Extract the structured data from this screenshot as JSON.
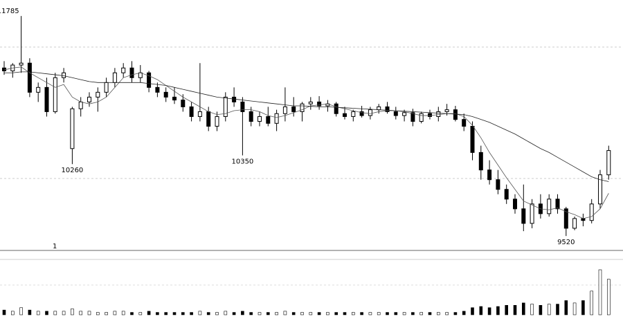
{
  "chart_data": {
    "type": "candlestick",
    "ohlc": [
      [
        11250,
        11320,
        11180,
        11220
      ],
      [
        11220,
        11300,
        11150,
        11280
      ],
      [
        11280,
        11785,
        11200,
        11300
      ],
      [
        11300,
        11350,
        10950,
        11000
      ],
      [
        11000,
        11100,
        10900,
        11050
      ],
      [
        11050,
        11150,
        10750,
        10800
      ],
      [
        10800,
        11200,
        10780,
        11150
      ],
      [
        11150,
        11250,
        11100,
        11200
      ],
      [
        10420,
        10850,
        10260,
        10830
      ],
      [
        10830,
        10950,
        10750,
        10900
      ],
      [
        10900,
        11000,
        10850,
        10950
      ],
      [
        10950,
        11050,
        10800,
        11000
      ],
      [
        11000,
        11150,
        10950,
        11100
      ],
      [
        11100,
        11250,
        11050,
        11200
      ],
      [
        11200,
        11300,
        11150,
        11250
      ],
      [
        11250,
        11320,
        11100,
        11150
      ],
      [
        11150,
        11280,
        11100,
        11200
      ],
      [
        11200,
        11220,
        11000,
        11050
      ],
      [
        11050,
        11100,
        10950,
        11000
      ],
      [
        11000,
        11050,
        10900,
        10950
      ],
      [
        10950,
        11050,
        10880,
        10920
      ],
      [
        10920,
        10980,
        10800,
        10850
      ],
      [
        10850,
        10900,
        10700,
        10750
      ],
      [
        10750,
        11300,
        10700,
        10800
      ],
      [
        10800,
        10850,
        10600,
        10650
      ],
      [
        10650,
        10800,
        10600,
        10750
      ],
      [
        10750,
        11000,
        10700,
        10950
      ],
      [
        10950,
        11050,
        10850,
        10900
      ],
      [
        10900,
        10950,
        10350,
        10800
      ],
      [
        10800,
        10850,
        10650,
        10700
      ],
      [
        10700,
        10800,
        10650,
        10750
      ],
      [
        10750,
        10850,
        10650,
        10680
      ],
      [
        10680,
        10820,
        10600,
        10780
      ],
      [
        10780,
        11050,
        10700,
        10850
      ],
      [
        10850,
        10950,
        10750,
        10800
      ],
      [
        10800,
        10900,
        10700,
        10880
      ],
      [
        10880,
        10950,
        10820,
        10900
      ],
      [
        10900,
        10960,
        10820,
        10860
      ],
      [
        10860,
        10920,
        10800,
        10880
      ],
      [
        10880,
        10900,
        10750,
        10780
      ],
      [
        10780,
        10850,
        10720,
        10750
      ],
      [
        10750,
        10820,
        10700,
        10800
      ],
      [
        10800,
        10860,
        10740,
        10760
      ],
      [
        10760,
        10850,
        10720,
        10820
      ],
      [
        10820,
        10880,
        10780,
        10850
      ],
      [
        10850,
        10900,
        10780,
        10800
      ],
      [
        10800,
        10850,
        10720,
        10760
      ],
      [
        10760,
        10820,
        10700,
        10790
      ],
      [
        10790,
        10830,
        10650,
        10700
      ],
      [
        10700,
        10800,
        10680,
        10780
      ],
      [
        10780,
        10820,
        10720,
        10750
      ],
      [
        10750,
        10850,
        10700,
        10800
      ],
      [
        10800,
        10880,
        10760,
        10820
      ],
      [
        10820,
        10860,
        10700,
        10720
      ],
      [
        10720,
        10780,
        10600,
        10650
      ],
      [
        10650,
        10700,
        10300,
        10380
      ],
      [
        10380,
        10450,
        10100,
        10200
      ],
      [
        10200,
        10300,
        10050,
        10100
      ],
      [
        10100,
        10200,
        9950,
        10000
      ],
      [
        10000,
        10050,
        9850,
        9900
      ],
      [
        9900,
        9950,
        9750,
        9800
      ],
      [
        9800,
        10050,
        9570,
        9650
      ],
      [
        9650,
        9900,
        9600,
        9850
      ],
      [
        9850,
        9950,
        9700,
        9750
      ],
      [
        9750,
        9950,
        9720,
        9900
      ],
      [
        9900,
        9950,
        9750,
        9800
      ],
      [
        9800,
        9820,
        9520,
        9600
      ],
      [
        9600,
        9720,
        9580,
        9700
      ],
      [
        9700,
        9750,
        9620,
        9680
      ],
      [
        9680,
        9900,
        9650,
        9850
      ],
      [
        9850,
        10200,
        9800,
        10150
      ],
      [
        10150,
        10450,
        10100,
        10400
      ]
    ],
    "lines": [
      {
        "color": "#555555",
        "values": [
          11230,
          11250,
          11260,
          11200,
          11150,
          11100,
          11050,
          11080,
          10950,
          10900,
          10880,
          10900,
          10950,
          11050,
          11150,
          11180,
          11200,
          11170,
          11130,
          11070,
          11010,
          10950,
          10900,
          10850,
          10800,
          10770,
          10780,
          10810,
          10820,
          10820,
          10800,
          10760,
          10740,
          10760,
          10790,
          10820,
          10860,
          10870,
          10880,
          10850,
          10830,
          10810,
          10790,
          10780,
          10800,
          10810,
          10810,
          10800,
          10780,
          10760,
          10760,
          10770,
          10780,
          10780,
          10750,
          10660,
          10530,
          10380,
          10250,
          10120,
          10000,
          9880,
          9840,
          9800,
          9790,
          9810,
          9770,
          9740,
          9700,
          9720,
          9800,
          9960
        ]
      },
      {
        "color": "#222222",
        "values": [
          11200,
          11200,
          11210,
          11210,
          11200,
          11190,
          11180,
          11170,
          11150,
          11130,
          11110,
          11100,
          11100,
          11100,
          11100,
          11100,
          11100,
          11090,
          11080,
          11070,
          11050,
          11030,
          11010,
          10990,
          10970,
          10950,
          10940,
          10930,
          10920,
          10910,
          10900,
          10890,
          10880,
          10870,
          10860,
          10860,
          10855,
          10850,
          10850,
          10845,
          10840,
          10835,
          10830,
          10825,
          10820,
          10815,
          10810,
          10805,
          10800,
          10795,
          10790,
          10785,
          10780,
          10775,
          10770,
          10750,
          10720,
          10690,
          10650,
          10610,
          10570,
          10520,
          10470,
          10420,
          10380,
          10330,
          10280,
          10230,
          10180,
          10130,
          10100,
          10080
        ]
      }
    ],
    "ylim": [
      9400,
      11850
    ],
    "volume": [
      4,
      3,
      6,
      4,
      3,
      3,
      3,
      3,
      5,
      3,
      3,
      2,
      2,
      3,
      3,
      2,
      2,
      3,
      2,
      2,
      2,
      2,
      2,
      3,
      2,
      2,
      3,
      2,
      3,
      2,
      2,
      2,
      2,
      3,
      2,
      2,
      2,
      2,
      2,
      2,
      2,
      2,
      2,
      2,
      2,
      2,
      2,
      2,
      2,
      2,
      2,
      2,
      2,
      2,
      3,
      6,
      7,
      6,
      7,
      8,
      8,
      10,
      9,
      8,
      9,
      9,
      12,
      10,
      12,
      20,
      38,
      30
    ],
    "volume_ylim": [
      0,
      45
    ],
    "marker_text": "1"
  }
}
